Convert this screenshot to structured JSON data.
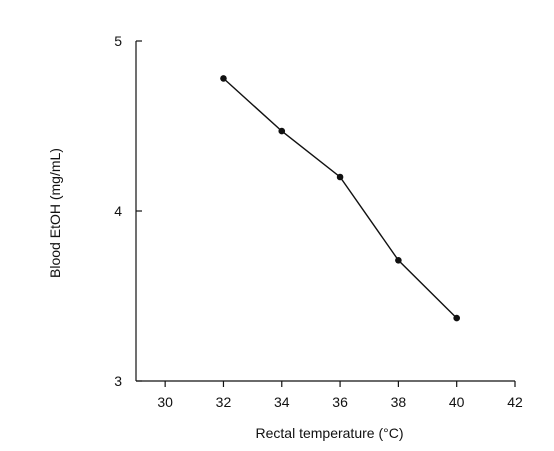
{
  "chart_data": {
    "type": "line",
    "title": "",
    "xlabel": "Rectal temperature (°C)",
    "ylabel": "Blood EtOH (mg/mL)",
    "xlim": [
      29,
      42
    ],
    "ylim": [
      3,
      5
    ],
    "xticks": [
      "30",
      "32",
      "34",
      "36",
      "38",
      "40",
      "42"
    ],
    "yticks": [
      "3",
      "4",
      "5"
    ],
    "grid": false,
    "legend": "none",
    "series": [
      {
        "x": [
          32,
          34,
          36,
          38,
          40
        ],
        "y": [
          4.78,
          4.47,
          4.2,
          3.71,
          3.37
        ]
      }
    ],
    "colors": {
      "line": "#111111",
      "marker": "#111111",
      "axis": "#111111"
    }
  }
}
